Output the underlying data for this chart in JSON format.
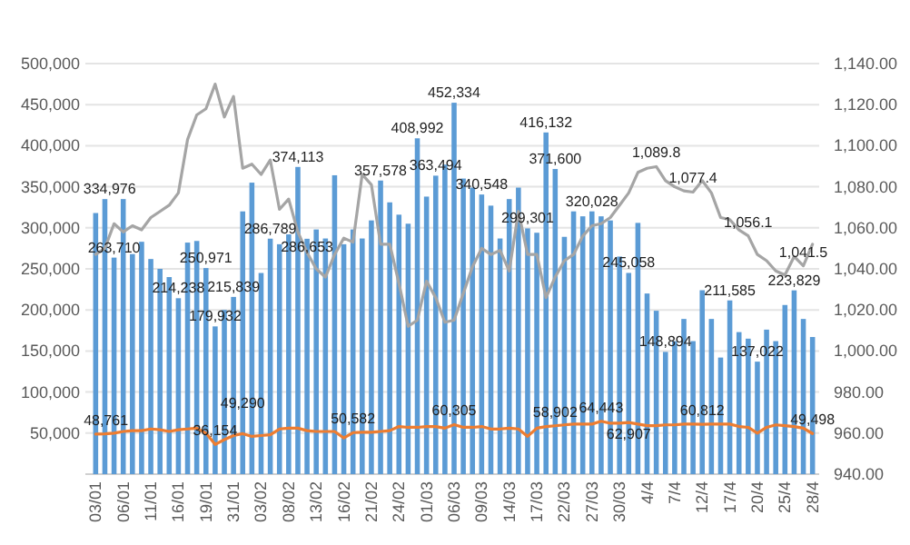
{
  "chart_data": {
    "type": "bar",
    "categories": [
      "03/01",
      null,
      null,
      "06/01",
      null,
      null,
      "11/01",
      null,
      null,
      "16/01",
      null,
      null,
      "19/01",
      null,
      null,
      "31/01",
      null,
      null,
      "03/02",
      null,
      null,
      "08/02",
      null,
      null,
      "13/02",
      null,
      null,
      "16/02",
      null,
      null,
      "21/02",
      null,
      null,
      "24/02",
      null,
      null,
      "01/03",
      null,
      null,
      "06/03",
      null,
      null,
      "09/03",
      null,
      null,
      "14/03",
      null,
      null,
      "17/03",
      null,
      null,
      "22/03",
      null,
      null,
      "27/03",
      null,
      null,
      "30/03",
      null,
      null,
      "4/4",
      null,
      null,
      "7/4",
      null,
      null,
      "12/4",
      null,
      null,
      "17/4",
      null,
      null,
      "20/4",
      null,
      null,
      "25/4",
      null,
      null,
      "28/4"
    ],
    "series": [
      {
        "color": "#5b9bd5",
        "values": [
          318000,
          334976,
          263710,
          335000,
          268000,
          283000,
          262000,
          250000,
          240000,
          214238,
          282000,
          284000,
          250971,
          179932,
          200000,
          215839,
          320000,
          355000,
          245000,
          286789,
          280000,
          292000,
          374113,
          286653,
          298000,
          287000,
          364000,
          280000,
          298000,
          287000,
          309000,
          357578,
          331000,
          316000,
          305000,
          408992,
          338000,
          363494,
          377000,
          452334,
          360000,
          349000,
          340548,
          327000,
          287000,
          335000,
          349000,
          299301,
          294000,
          416132,
          371600,
          289000,
          320000,
          314000,
          320028,
          314000,
          309000,
          265000,
          245058,
          306000,
          220000,
          199000,
          148894,
          162000,
          189000,
          162000,
          224000,
          189000,
          142000,
          211585,
          173000,
          165000,
          137022,
          176000,
          162000,
          206000,
          223829,
          189000,
          167000
        ],
        "value_labels": [
          null,
          "334,976",
          "263,710",
          null,
          null,
          null,
          null,
          null,
          null,
          "214,238",
          null,
          null,
          "250,971",
          "179,932",
          null,
          "215,839",
          null,
          null,
          null,
          "286,789",
          null,
          null,
          "374,113",
          "286,653",
          null,
          null,
          null,
          null,
          null,
          null,
          null,
          "357,578",
          null,
          null,
          null,
          "408,992",
          null,
          "363,494",
          null,
          "452,334",
          null,
          null,
          "340,548",
          null,
          null,
          null,
          null,
          "299,301",
          null,
          "416,132",
          "371,600",
          null,
          null,
          null,
          "320,028",
          null,
          null,
          null,
          "245,058",
          null,
          null,
          null,
          "148,894",
          null,
          null,
          null,
          null,
          null,
          null,
          "211,585",
          null,
          null,
          "137,022",
          null,
          null,
          null,
          "223,829",
          null,
          null
        ]
      },
      {
        "type": "line",
        "color": "#a5a5a5",
        "axis": "y2",
        "values": [
          1047,
          1050,
          1062,
          1058,
          1061,
          1059,
          1065,
          1068,
          1071,
          1077,
          1103,
          1115,
          1118,
          1130,
          1114,
          1124,
          1089,
          1091,
          1086,
          1093,
          1069,
          1074,
          1058,
          1048,
          1040,
          1036,
          1047,
          1055,
          1053,
          1086,
          1081,
          1052,
          1052,
          1033,
          1012,
          1015,
          1034,
          1026,
          1014,
          1015,
          1028,
          1041,
          1050,
          1047,
          1049,
          1039,
          1068,
          1047,
          1047,
          1026,
          1036,
          1044,
          1047,
          1056,
          1061,
          1062,
          1065,
          1071,
          1077,
          1087,
          1089,
          1089.8,
          1083,
          1080,
          1078,
          1077.4,
          1083,
          1077,
          1065,
          1064,
          1059,
          1056.1,
          1047,
          1044,
          1039,
          1037,
          1046,
          1041.5,
          1052
        ],
        "value_labels": [
          null,
          null,
          null,
          null,
          null,
          null,
          null,
          null,
          null,
          null,
          null,
          null,
          null,
          null,
          null,
          null,
          null,
          null,
          null,
          null,
          null,
          null,
          null,
          null,
          null,
          null,
          null,
          null,
          null,
          null,
          null,
          null,
          null,
          null,
          null,
          null,
          null,
          null,
          null,
          null,
          null,
          null,
          null,
          null,
          null,
          null,
          null,
          null,
          null,
          null,
          null,
          null,
          null,
          null,
          null,
          null,
          null,
          null,
          null,
          null,
          null,
          "1,089.8",
          null,
          null,
          null,
          "1,077.4",
          null,
          null,
          null,
          null,
          null,
          "1,056.1",
          null,
          null,
          null,
          null,
          null,
          "1,041.5",
          null
        ]
      },
      {
        "type": "line",
        "color": "#ed7d31",
        "values": [
          48761,
          49000,
          50000,
          52000,
          53000,
          53000,
          55000,
          54000,
          52000,
          54000,
          55000,
          56000,
          50000,
          36154,
          42000,
          47000,
          49290,
          46000,
          47000,
          48000,
          55000,
          56000,
          56000,
          53000,
          52000,
          52000,
          52000,
          44000,
          50582,
          51000,
          51000,
          52000,
          53000,
          58000,
          57000,
          57000,
          58000,
          58000,
          56000,
          60305,
          57000,
          57000,
          58000,
          55000,
          55000,
          56000,
          55000,
          46000,
          56000,
          58000,
          58902,
          60000,
          61000,
          61000,
          61000,
          64443,
          62000,
          62000,
          62907,
          61000,
          59000,
          59000,
          60000,
          60000,
          61000,
          61000,
          60812,
          61000,
          61000,
          61000,
          58000,
          57000,
          50000,
          57000,
          60000,
          59000,
          58000,
          56000,
          49498
        ],
        "value_labels": [
          "48,761",
          null,
          null,
          null,
          null,
          null,
          null,
          null,
          null,
          null,
          null,
          null,
          null,
          "36,154",
          null,
          null,
          "49,290",
          null,
          null,
          null,
          null,
          null,
          null,
          null,
          null,
          null,
          null,
          null,
          "50,582",
          null,
          null,
          null,
          null,
          null,
          null,
          null,
          null,
          null,
          null,
          "60,305",
          null,
          null,
          null,
          null,
          null,
          null,
          null,
          null,
          null,
          null,
          "58,902",
          null,
          null,
          null,
          null,
          "64,443",
          null,
          null,
          "62,907",
          null,
          null,
          null,
          null,
          null,
          null,
          null,
          "60,812",
          null,
          null,
          null,
          null,
          null,
          null,
          null,
          null,
          null,
          null,
          null,
          "49,498"
        ]
      }
    ],
    "ylim": [
      0,
      500000
    ],
    "yticks": [
      {
        "value": 0,
        "label": null
      },
      {
        "value": 50000,
        "label": "50,000"
      },
      {
        "value": 100000,
        "label": "100,000"
      },
      {
        "value": 150000,
        "label": "150,000"
      },
      {
        "value": 200000,
        "label": "200,000"
      },
      {
        "value": 250000,
        "label": "250,000"
      },
      {
        "value": 300000,
        "label": "300,000"
      },
      {
        "value": 350000,
        "label": "350,000"
      },
      {
        "value": 400000,
        "label": "400,000"
      },
      {
        "value": 450000,
        "label": "450,000"
      },
      {
        "value": 500000,
        "label": "500,000"
      }
    ],
    "y2lim": [
      940,
      1140
    ],
    "y2ticks": [
      {
        "value": 940,
        "label": "940.00"
      },
      {
        "value": 960,
        "label": "960.00"
      },
      {
        "value": 980,
        "label": "980.00"
      },
      {
        "value": 1000,
        "label": "1,000.00"
      },
      {
        "value": 1020,
        "label": "1,020.00"
      },
      {
        "value": 1040,
        "label": "1,040.00"
      },
      {
        "value": 1060,
        "label": "1,060.00"
      },
      {
        "value": 1080,
        "label": "1,080.00"
      },
      {
        "value": 1100,
        "label": "1,100.00"
      },
      {
        "value": 1120,
        "label": "1,120.00"
      },
      {
        "value": 1140,
        "label": "1,140.00"
      }
    ],
    "grid": "y"
  }
}
